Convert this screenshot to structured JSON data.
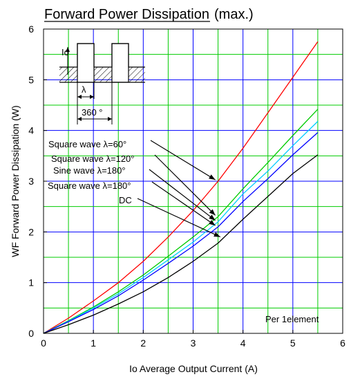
{
  "chart_data": {
    "type": "line",
    "title": "Forward Power Dissipation",
    "title_suffix": "(max.)",
    "xlabel": "Io   Average Output Current   (A)",
    "ylabel": "WF   Forward Power Dissipation   (W)",
    "xlim": [
      0,
      6
    ],
    "ylim": [
      0,
      6
    ],
    "x_ticks": [
      "0",
      "1",
      "2",
      "3",
      "4",
      "5",
      "6"
    ],
    "y_ticks": [
      "0",
      "1",
      "2",
      "3",
      "4",
      "5",
      "6"
    ],
    "grid": true,
    "note": "Per 1element",
    "series": [
      {
        "name": "Square wave λ=60°",
        "color": "#ff0000",
        "x": [
          0,
          0.5,
          1,
          1.5,
          2,
          2.5,
          3,
          3.5,
          4,
          4.5,
          5,
          5.5
        ],
        "y": [
          0,
          0.3,
          0.64,
          1.0,
          1.42,
          1.9,
          2.42,
          3.0,
          3.65,
          4.35,
          5.05,
          5.75
        ]
      },
      {
        "name": "Square wave λ=120°",
        "color": "#00cc00",
        "x": [
          0,
          0.5,
          1,
          1.5,
          2,
          2.5,
          3,
          3.5,
          4,
          4.5,
          5,
          5.5
        ],
        "y": [
          0,
          0.25,
          0.52,
          0.82,
          1.15,
          1.52,
          1.9,
          2.3,
          2.85,
          3.37,
          3.9,
          4.42
        ]
      },
      {
        "name": "Sine wave λ=180°",
        "color": "#00ccff",
        "x": [
          0,
          0.5,
          1,
          1.5,
          2,
          2.5,
          3,
          3.5,
          4,
          4.5,
          5,
          5.5
        ],
        "y": [
          0,
          0.24,
          0.5,
          0.78,
          1.1,
          1.45,
          1.8,
          2.2,
          2.75,
          3.2,
          3.7,
          4.18
        ]
      },
      {
        "name": "Square wave λ=180°",
        "color": "#0000ff",
        "x": [
          0,
          0.5,
          1,
          1.5,
          2,
          2.5,
          3,
          3.5,
          4,
          4.5,
          5,
          5.5
        ],
        "y": [
          0,
          0.23,
          0.47,
          0.74,
          1.05,
          1.38,
          1.72,
          2.1,
          2.6,
          3.05,
          3.52,
          3.96
        ]
      },
      {
        "name": "DC",
        "color": "#000000",
        "x": [
          0,
          0.5,
          1,
          1.5,
          2,
          2.5,
          3,
          3.5,
          4,
          4.5,
          5,
          5.5
        ],
        "y": [
          0,
          0.17,
          0.36,
          0.58,
          0.82,
          1.1,
          1.42,
          1.78,
          2.25,
          2.7,
          3.15,
          3.52
        ]
      }
    ],
    "inset": {
      "current_label": "Io",
      "lambda_label": "λ",
      "period_label": "360 °"
    }
  }
}
